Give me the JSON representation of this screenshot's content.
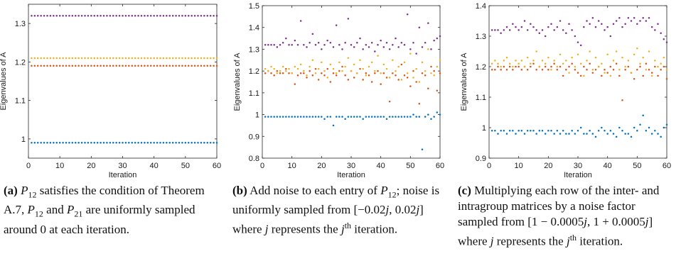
{
  "chart_data": [
    {
      "type": "scatter",
      "panel": "a",
      "xlabel": "Iteration",
      "ylabel": "Eigenvalues of A",
      "xlim": [
        0,
        60
      ],
      "ylim": [
        0.95,
        1.35
      ],
      "xticks": [
        0,
        10,
        20,
        30,
        40,
        50,
        60
      ],
      "yticks": [
        1,
        1.1,
        1.2,
        1.3
      ],
      "ytick_labels": [
        "1",
        "1.1",
        "1.2",
        "1.3"
      ],
      "grid": false,
      "series": [
        {
          "color": "#0072BD",
          "constant": 0.99
        },
        {
          "color": "#D95319",
          "constant": 1.19
        },
        {
          "color": "#EDB120",
          "constant": 1.21
        },
        {
          "color": "#7E2F8E",
          "constant": 1.32
        }
      ]
    },
    {
      "type": "scatter",
      "panel": "b",
      "xlabel": "Iteration",
      "ylabel": "Eigenvalues of A",
      "xlim": [
        0,
        60
      ],
      "ylim": [
        0.8,
        1.5
      ],
      "xticks": [
        0,
        10,
        20,
        30,
        40,
        50,
        60
      ],
      "yticks": [
        0.8,
        0.9,
        1,
        1.1,
        1.2,
        1.3,
        1.4,
        1.5
      ],
      "ytick_labels": [
        "0.8",
        "0.9",
        "1",
        "1.1",
        "1.2",
        "1.3",
        "1.4",
        "1.5"
      ],
      "grid": false,
      "series": [
        {
          "color": "#0072BD",
          "values": [
            0.99,
            0.99,
            0.99,
            0.99,
            0.99,
            0.99,
            0.99,
            0.99,
            0.99,
            0.99,
            0.99,
            0.99,
            0.99,
            0.99,
            0.99,
            0.99,
            0.99,
            0.99,
            0.99,
            0.99,
            0.98,
            0.99,
            0.99,
            0.95,
            0.99,
            0.99,
            0.99,
            0.98,
            0.99,
            0.99,
            0.99,
            0.99,
            0.99,
            0.98,
            0.99,
            0.99,
            0.99,
            0.99,
            0.99,
            0.99,
            0.99,
            0.98,
            0.99,
            0.99,
            0.99,
            0.99,
            0.99,
            0.99,
            0.99,
            0.99,
            1.0,
            0.99,
            0.99,
            0.84,
            0.99,
            1.0,
            0.98,
            0.99,
            1.01,
            1.0
          ]
        },
        {
          "color": "#D95319",
          "values": [
            1.19,
            1.2,
            1.19,
            1.18,
            1.2,
            1.19,
            1.19,
            1.21,
            1.19,
            1.19,
            1.14,
            1.18,
            1.19,
            1.19,
            1.17,
            1.2,
            1.18,
            1.21,
            1.16,
            1.19,
            1.18,
            1.21,
            1.15,
            1.19,
            1.18,
            1.2,
            1.22,
            1.18,
            1.16,
            1.2,
            1.17,
            1.19,
            1.21,
            1.16,
            1.19,
            1.18,
            1.15,
            1.19,
            1.2,
            1.14,
            1.19,
            1.17,
            1.06,
            1.19,
            1.18,
            1.16,
            1.23,
            1.18,
            1.17,
            1.13,
            1.2,
            1.15,
            1.05,
            1.19,
            1.18,
            1.12,
            1.22,
            1.2,
            1.11,
            1.19
          ]
        },
        {
          "color": "#EDB120",
          "values": [
            1.21,
            1.2,
            1.22,
            1.21,
            1.19,
            1.2,
            1.22,
            1.2,
            1.21,
            1.19,
            1.22,
            1.21,
            1.23,
            1.2,
            1.18,
            1.22,
            1.25,
            1.19,
            1.21,
            1.24,
            1.2,
            1.17,
            1.23,
            1.21,
            1.19,
            1.24,
            1.2,
            1.22,
            1.26,
            1.2,
            1.23,
            1.19,
            1.25,
            1.21,
            1.18,
            1.22,
            1.24,
            1.2,
            1.27,
            1.19,
            1.23,
            1.21,
            1.17,
            1.25,
            1.2,
            1.22,
            1.16,
            1.24,
            1.19,
            1.28,
            1.17,
            1.21,
            1.15,
            1.24,
            1.2,
            1.3,
            1.19,
            1.18,
            1.22,
            1.25
          ]
        },
        {
          "color": "#7E2F8E",
          "values": [
            1.32,
            1.32,
            1.32,
            1.32,
            1.31,
            1.32,
            1.33,
            1.35,
            1.32,
            1.32,
            1.34,
            1.32,
            1.43,
            1.32,
            1.31,
            1.33,
            1.37,
            1.32,
            1.33,
            1.3,
            1.32,
            1.34,
            1.33,
            1.31,
            1.41,
            1.32,
            1.3,
            1.33,
            1.44,
            1.32,
            1.31,
            1.33,
            1.35,
            1.3,
            1.32,
            1.31,
            1.33,
            1.29,
            1.32,
            1.34,
            1.31,
            1.33,
            1.3,
            1.32,
            1.35,
            1.31,
            1.33,
            1.32,
            1.46,
            1.3,
            1.33,
            1.28,
            1.4,
            1.31,
            1.33,
            1.42,
            1.3,
            1.34,
            1.35,
            1.36
          ]
        }
      ]
    },
    {
      "type": "scatter",
      "panel": "c",
      "xlabel": "Iteration",
      "ylabel": "Eigenvalues of A",
      "xlim": [
        0,
        60
      ],
      "ylim": [
        0.9,
        1.4
      ],
      "xticks": [
        0,
        10,
        20,
        30,
        40,
        50,
        60
      ],
      "yticks": [
        0.9,
        1,
        1.1,
        1.2,
        1.3,
        1.4
      ],
      "ytick_labels": [
        "0.9",
        "1",
        "1.1",
        "1.2",
        "1.3",
        "1.4"
      ],
      "grid": false,
      "series": [
        {
          "color": "#0072BD",
          "values": [
            0.99,
            0.99,
            0.98,
            0.99,
            0.99,
            0.98,
            0.99,
            0.99,
            0.98,
            0.99,
            0.99,
            0.98,
            0.99,
            0.99,
            0.99,
            0.98,
            0.99,
            0.99,
            0.98,
            0.99,
            0.99,
            0.98,
            0.99,
            0.98,
            0.99,
            0.98,
            0.98,
            0.99,
            0.98,
            0.99,
            1.0,
            0.98,
            0.98,
            0.99,
            0.98,
            0.97,
            0.99,
            1.0,
            0.99,
            0.98,
            0.99,
            0.98,
            0.97,
            1.0,
            0.99,
            0.98,
            0.98,
            0.97,
            1.0,
            0.99,
            1.01,
            1.04,
            0.99,
            1.0,
            0.98,
            0.99,
            0.98,
            0.97,
            1.0,
            1.01
          ]
        },
        {
          "color": "#D95319",
          "values": [
            1.19,
            1.19,
            1.2,
            1.19,
            1.2,
            1.19,
            1.2,
            1.19,
            1.2,
            1.2,
            1.19,
            1.2,
            1.19,
            1.2,
            1.21,
            1.19,
            1.2,
            1.19,
            1.2,
            1.19,
            1.2,
            1.21,
            1.19,
            1.2,
            1.17,
            1.19,
            1.2,
            1.21,
            1.19,
            1.18,
            1.17,
            1.2,
            1.19,
            1.21,
            1.18,
            1.19,
            1.2,
            1.17,
            1.19,
            1.18,
            1.2,
            1.19,
            1.21,
            1.17,
            1.09,
            1.19,
            1.2,
            1.18,
            1.16,
            1.19,
            1.2,
            1.17,
            1.21,
            1.19,
            1.18,
            1.2,
            1.17,
            1.19,
            1.2,
            1.16
          ]
        },
        {
          "color": "#EDB120",
          "values": [
            1.21,
            1.22,
            1.21,
            1.2,
            1.22,
            1.23,
            1.21,
            1.2,
            1.22,
            1.21,
            1.22,
            1.2,
            1.23,
            1.21,
            1.22,
            1.25,
            1.2,
            1.22,
            1.21,
            1.23,
            1.19,
            1.22,
            1.2,
            1.24,
            1.21,
            1.22,
            1.18,
            1.23,
            1.2,
            1.24,
            1.21,
            1.17,
            1.22,
            1.25,
            1.19,
            1.23,
            1.2,
            1.21,
            1.18,
            1.24,
            1.17,
            1.22,
            1.25,
            1.19,
            1.23,
            1.2,
            1.22,
            1.18,
            1.24,
            1.26,
            1.21,
            1.23,
            1.19,
            1.25,
            1.17,
            1.22,
            1.2,
            1.21,
            1.23,
            1.19
          ]
        },
        {
          "color": "#7E2F8E",
          "values": [
            1.32,
            1.32,
            1.32,
            1.31,
            1.32,
            1.33,
            1.32,
            1.34,
            1.33,
            1.32,
            1.33,
            1.35,
            1.32,
            1.34,
            1.33,
            1.32,
            1.31,
            1.32,
            1.3,
            1.33,
            1.34,
            1.32,
            1.33,
            1.35,
            1.32,
            1.31,
            1.34,
            1.32,
            1.3,
            1.28,
            1.27,
            1.33,
            1.35,
            1.34,
            1.36,
            1.33,
            1.35,
            1.34,
            1.32,
            1.33,
            1.3,
            1.34,
            1.35,
            1.36,
            1.33,
            1.34,
            1.36,
            1.35,
            1.36,
            1.34,
            1.35,
            1.36,
            1.35,
            1.36,
            1.33,
            1.32,
            1.34,
            1.31,
            1.29,
            1.28
          ]
        }
      ]
    }
  ],
  "captions": {
    "a": {
      "label": "(a)",
      "parts": [
        {
          "t": "P",
          "style": "i"
        },
        {
          "t": "12",
          "style": "sub"
        },
        {
          "t": " satisfies the condition of Theorem A.7, ",
          "style": "n"
        },
        {
          "t": "P",
          "style": "i"
        },
        {
          "t": "12",
          "style": "sub"
        },
        {
          "t": " and ",
          "style": "n"
        },
        {
          "t": "P",
          "style": "i"
        },
        {
          "t": "21",
          "style": "sub"
        },
        {
          "t": " are uniformly sampled around 0 at each iteration.",
          "style": "n"
        }
      ]
    },
    "b": {
      "label": "(b)",
      "parts": [
        {
          "t": " Add noise to each entry of ",
          "style": "n"
        },
        {
          "t": "P",
          "style": "i"
        },
        {
          "t": "12",
          "style": "sub"
        },
        {
          "t": "; noise is uniformly sampled from [−0.02",
          "style": "n"
        },
        {
          "t": "j",
          "style": "i"
        },
        {
          "t": ", 0.02",
          "style": "n"
        },
        {
          "t": "j",
          "style": "i"
        },
        {
          "t": "] where ",
          "style": "n"
        },
        {
          "t": "j",
          "style": "i"
        },
        {
          "t": " represents the ",
          "style": "n"
        },
        {
          "t": "j",
          "style": "i"
        },
        {
          "t": "th",
          "style": "sup"
        },
        {
          "t": " iteration.",
          "style": "n"
        }
      ]
    },
    "c": {
      "label": "(c)",
      "parts": [
        {
          "t": " Multiplying each row of the inter- and intragroup matrices by a noise factor sampled from [1 − 0.0005",
          "style": "n"
        },
        {
          "t": "j",
          "style": "i"
        },
        {
          "t": ", 1 + 0.0005",
          "style": "n"
        },
        {
          "t": "j",
          "style": "i"
        },
        {
          "t": "] where ",
          "style": "n"
        },
        {
          "t": "j",
          "style": "i"
        },
        {
          "t": " represents the ",
          "style": "n"
        },
        {
          "t": "j",
          "style": "i"
        },
        {
          "t": "th",
          "style": "sup"
        },
        {
          "t": " iteration.",
          "style": "n"
        }
      ]
    }
  }
}
